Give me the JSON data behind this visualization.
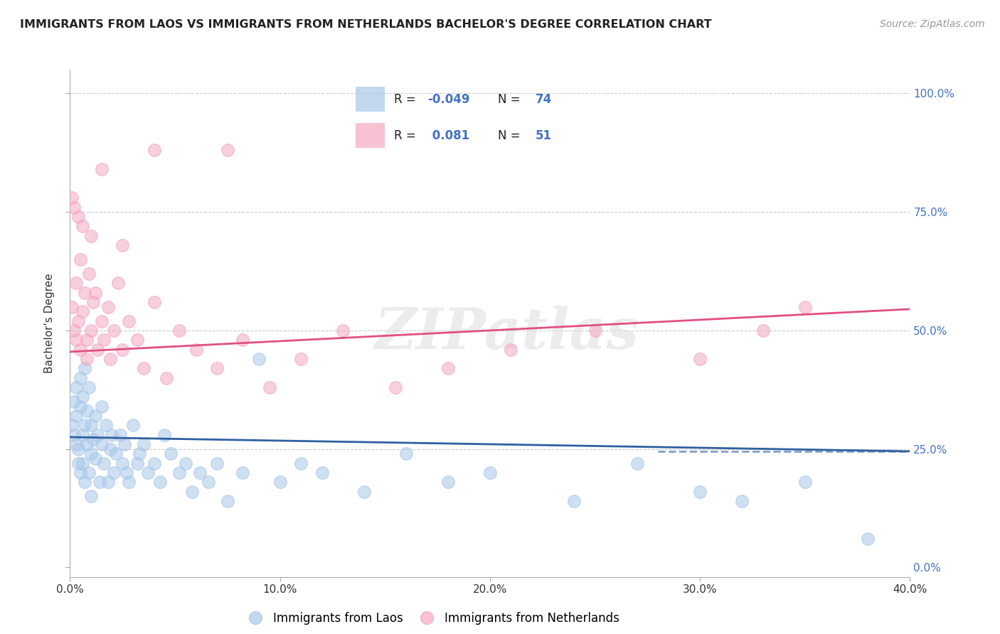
{
  "title": "IMMIGRANTS FROM LAOS VS IMMIGRANTS FROM NETHERLANDS BACHELOR'S DEGREE CORRELATION CHART",
  "source": "Source: ZipAtlas.com",
  "ylabel": "Bachelor's Degree",
  "xlim": [
    0.0,
    0.4
  ],
  "ylim": [
    -0.02,
    1.05
  ],
  "R_blue": -0.049,
  "N_blue": 74,
  "R_pink": 0.081,
  "N_pink": 51,
  "blue_color": "#a8c8e8",
  "pink_color": "#f4a8c0",
  "blue_line_color": "#3060a0",
  "pink_line_color": "#e05080",
  "blue_text_color": "#4472c4",
  "watermark": "ZIPatlas",
  "legend_label_blue": "Immigrants from Laos",
  "legend_label_pink": "Immigrants from Netherlands",
  "blue_scatter_x": [
    0.001,
    0.002,
    0.002,
    0.003,
    0.003,
    0.003,
    0.004,
    0.004,
    0.005,
    0.005,
    0.005,
    0.006,
    0.006,
    0.006,
    0.007,
    0.007,
    0.007,
    0.008,
    0.008,
    0.009,
    0.009,
    0.01,
    0.01,
    0.01,
    0.011,
    0.012,
    0.012,
    0.013,
    0.014,
    0.015,
    0.015,
    0.016,
    0.017,
    0.018,
    0.019,
    0.02,
    0.021,
    0.022,
    0.024,
    0.025,
    0.026,
    0.027,
    0.028,
    0.03,
    0.032,
    0.033,
    0.035,
    0.037,
    0.04,
    0.043,
    0.045,
    0.048,
    0.052,
    0.055,
    0.058,
    0.062,
    0.066,
    0.07,
    0.075,
    0.082,
    0.09,
    0.1,
    0.11,
    0.12,
    0.14,
    0.16,
    0.18,
    0.2,
    0.24,
    0.27,
    0.3,
    0.32,
    0.35,
    0.38
  ],
  "blue_scatter_y": [
    0.3,
    0.28,
    0.35,
    0.26,
    0.32,
    0.38,
    0.25,
    0.22,
    0.34,
    0.2,
    0.4,
    0.28,
    0.22,
    0.36,
    0.18,
    0.3,
    0.42,
    0.26,
    0.33,
    0.2,
    0.38,
    0.24,
    0.3,
    0.15,
    0.27,
    0.23,
    0.32,
    0.28,
    0.18,
    0.26,
    0.34,
    0.22,
    0.3,
    0.18,
    0.25,
    0.28,
    0.2,
    0.24,
    0.28,
    0.22,
    0.26,
    0.2,
    0.18,
    0.3,
    0.22,
    0.24,
    0.26,
    0.2,
    0.22,
    0.18,
    0.28,
    0.24,
    0.2,
    0.22,
    0.16,
    0.2,
    0.18,
    0.22,
    0.14,
    0.2,
    0.44,
    0.18,
    0.22,
    0.2,
    0.16,
    0.24,
    0.18,
    0.2,
    0.14,
    0.22,
    0.16,
    0.14,
    0.18,
    0.06
  ],
  "pink_scatter_x": [
    0.001,
    0.002,
    0.003,
    0.003,
    0.004,
    0.005,
    0.005,
    0.006,
    0.007,
    0.008,
    0.008,
    0.009,
    0.01,
    0.011,
    0.012,
    0.013,
    0.015,
    0.016,
    0.018,
    0.019,
    0.021,
    0.023,
    0.025,
    0.028,
    0.032,
    0.035,
    0.04,
    0.046,
    0.052,
    0.06,
    0.07,
    0.082,
    0.095,
    0.11,
    0.13,
    0.155,
    0.18,
    0.21,
    0.25,
    0.3,
    0.35,
    0.001,
    0.002,
    0.004,
    0.006,
    0.01,
    0.015,
    0.025,
    0.04,
    0.075,
    0.33
  ],
  "pink_scatter_y": [
    0.55,
    0.5,
    0.6,
    0.48,
    0.52,
    0.46,
    0.65,
    0.54,
    0.58,
    0.48,
    0.44,
    0.62,
    0.5,
    0.56,
    0.58,
    0.46,
    0.52,
    0.48,
    0.55,
    0.44,
    0.5,
    0.6,
    0.46,
    0.52,
    0.48,
    0.42,
    0.56,
    0.4,
    0.5,
    0.46,
    0.42,
    0.48,
    0.38,
    0.44,
    0.5,
    0.38,
    0.42,
    0.46,
    0.5,
    0.44,
    0.55,
    0.78,
    0.76,
    0.74,
    0.72,
    0.7,
    0.84,
    0.68,
    0.88,
    0.88,
    0.5
  ],
  "blue_trend_x": [
    0.0,
    0.4
  ],
  "blue_trend_y": [
    0.275,
    0.245
  ],
  "pink_trend_x": [
    0.0,
    0.4
  ],
  "pink_trend_y": [
    0.455,
    0.545
  ]
}
